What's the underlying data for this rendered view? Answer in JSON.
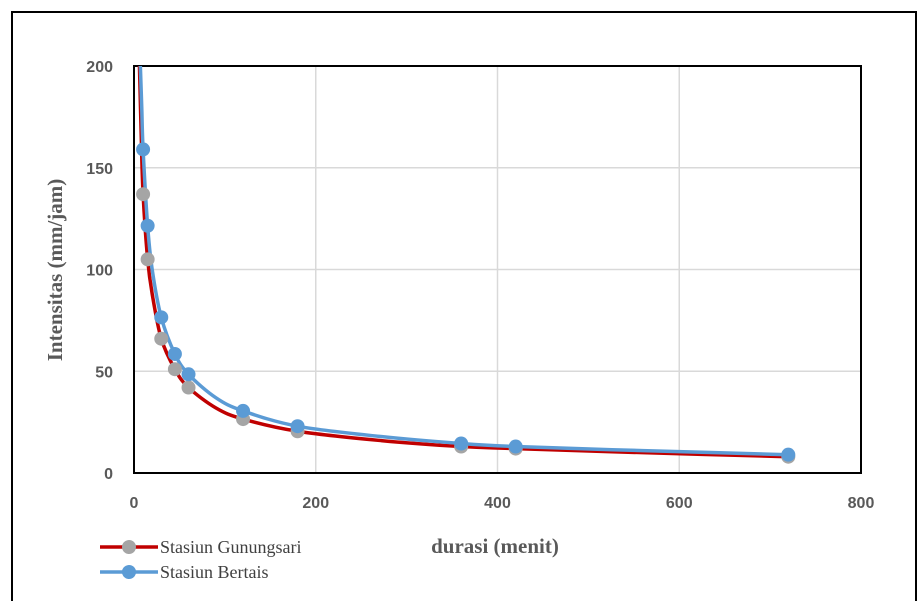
{
  "chart_data": {
    "type": "scatter",
    "xlabel": "durasi (menit)",
    "ylabel": "Intensitas (mm/jam)",
    "xlim": [
      0,
      800
    ],
    "ylim": [
      0,
      200
    ],
    "x_ticks": [
      "0",
      "200",
      "400",
      "600",
      "800"
    ],
    "y_ticks": [
      "0",
      "50",
      "100",
      "150",
      "200"
    ],
    "grid": "vertical and horizontal major gridlines",
    "legend_position": "bottom-left",
    "series": [
      {
        "name": "Stasiun Gunungsari",
        "line_color": "#C00000",
        "marker_color": "#A5A5A5",
        "points": [
          [
            10,
            137
          ],
          [
            15,
            105
          ],
          [
            30,
            66
          ],
          [
            45,
            51
          ],
          [
            60,
            42
          ],
          [
            120,
            26.5
          ],
          [
            180,
            20.5
          ],
          [
            360,
            13
          ],
          [
            420,
            12
          ],
          [
            720,
            8
          ]
        ],
        "curve": [
          [
            6,
            200
          ],
          [
            8,
            165
          ],
          [
            10,
            137
          ],
          [
            15,
            105
          ],
          [
            20,
            88
          ],
          [
            30,
            66
          ],
          [
            45,
            51
          ],
          [
            60,
            42
          ],
          [
            90,
            32
          ],
          [
            120,
            26.5
          ],
          [
            180,
            20.5
          ],
          [
            270,
            16
          ],
          [
            360,
            13
          ],
          [
            420,
            12
          ],
          [
            560,
            10
          ],
          [
            720,
            8
          ]
        ]
      },
      {
        "name": "Stasiun Bertais",
        "line_color": "#5B9BD5",
        "marker_color": "#5B9BD5",
        "points": [
          [
            10,
            159
          ],
          [
            15,
            121.5
          ],
          [
            30,
            76.5
          ],
          [
            45,
            58.5
          ],
          [
            60,
            48.5
          ],
          [
            120,
            30.5
          ],
          [
            180,
            23
          ],
          [
            360,
            14.5
          ],
          [
            420,
            13
          ],
          [
            720,
            9
          ]
        ],
        "curve": [
          [
            7,
            200
          ],
          [
            8.5,
            180
          ],
          [
            10,
            159
          ],
          [
            15,
            121.5
          ],
          [
            20,
            100
          ],
          [
            30,
            76.5
          ],
          [
            45,
            58.5
          ],
          [
            60,
            48.5
          ],
          [
            90,
            37
          ],
          [
            120,
            30.5
          ],
          [
            180,
            23
          ],
          [
            270,
            18
          ],
          [
            360,
            14.5
          ],
          [
            420,
            13
          ],
          [
            560,
            11
          ],
          [
            720,
            9
          ]
        ]
      }
    ]
  }
}
